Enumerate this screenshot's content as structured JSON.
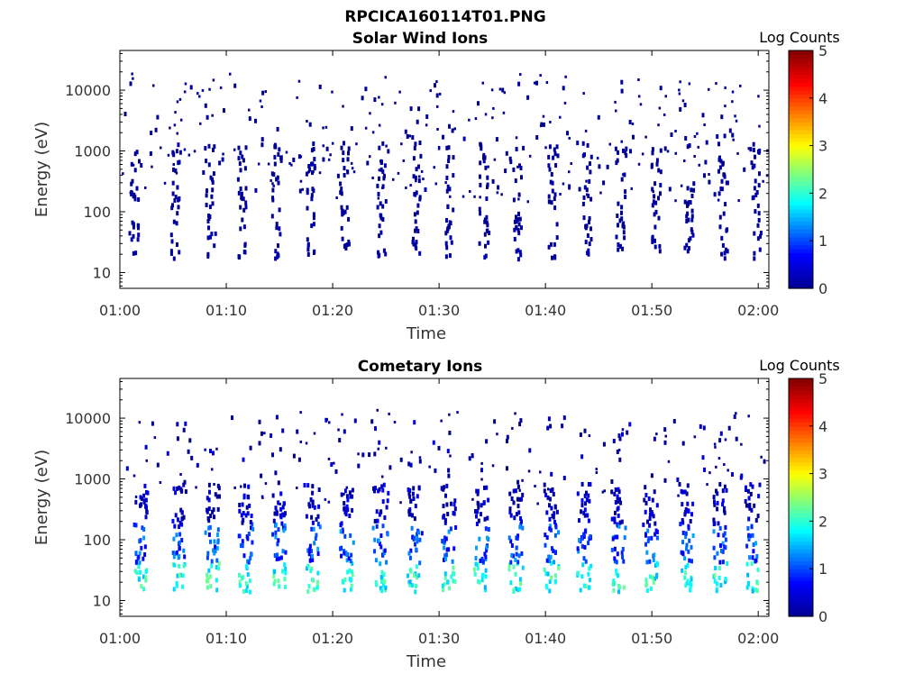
{
  "figure": {
    "title": "RPCICA160114T01.PNG"
  },
  "colors": {
    "background": "#ffffff",
    "axis": "#000000",
    "jet": [
      "#00008f",
      "#0000ff",
      "#00ffff",
      "#ffff00",
      "#ff0000",
      "#800000"
    ]
  },
  "chart_data": [
    {
      "type": "heatmap",
      "title": "Solar Wind Ions",
      "xlabel": "Time",
      "ylabel": "Energy (eV)",
      "x_ticks": [
        "01:00",
        "01:10",
        "01:20",
        "01:30",
        "01:40",
        "01:50",
        "02:00"
      ],
      "x_range_minutes": [
        0,
        61
      ],
      "y_scale": "log",
      "y_ticks": [
        10,
        100,
        1000,
        10000
      ],
      "y_tick_labels": [
        "10",
        "100",
        "1000",
        "10000"
      ],
      "y_range": [
        5.5,
        45000
      ],
      "colorbar": {
        "label": "Log Counts",
        "range": [
          0,
          5
        ],
        "ticks": [
          "0",
          "1",
          "2",
          "3",
          "4",
          "5"
        ]
      },
      "grid": false,
      "sweep_minutes": [
        1.3,
        5.1,
        8.4,
        11.4,
        14.6,
        17.8,
        21.0,
        24.5,
        27.8,
        30.8,
        34.1,
        37.3,
        40.6,
        43.8,
        47.0,
        50.3,
        53.4,
        56.6,
        59.7
      ],
      "bands": [
        {
          "e_min": 18,
          "e_max": 50,
          "log_counts": 0.1,
          "note": "low-energy band"
        },
        {
          "e_min": 50,
          "e_max": 1500,
          "log_counts": 0.05,
          "note": "sparse vertical streaks"
        },
        {
          "e_min": 200,
          "e_max": 15000,
          "log_counts": 0.02,
          "note": "scattered background dots"
        }
      ]
    },
    {
      "type": "heatmap",
      "title": "Cometary Ions",
      "xlabel": "Time",
      "ylabel": "Energy (eV)",
      "x_ticks": [
        "01:00",
        "01:10",
        "01:20",
        "01:30",
        "01:40",
        "01:50",
        "02:00"
      ],
      "x_range_minutes": [
        0,
        61
      ],
      "y_scale": "log",
      "y_ticks": [
        10,
        100,
        1000,
        10000
      ],
      "y_tick_labels": [
        "10",
        "100",
        "1000",
        "10000"
      ],
      "y_range": [
        5.5,
        45000
      ],
      "colorbar": {
        "label": "Log Counts",
        "range": [
          0,
          5
        ],
        "ticks": [
          "0",
          "1",
          "2",
          "3",
          "4",
          "5"
        ]
      },
      "grid": false,
      "sweep_minutes": [
        1.9,
        5.4,
        8.6,
        11.7,
        14.9,
        18.0,
        21.2,
        24.4,
        27.6,
        30.8,
        33.9,
        37.1,
        40.4,
        43.5,
        46.7,
        49.8,
        53.1,
        56.2,
        59.3
      ],
      "bands": [
        {
          "e_min": 15,
          "e_max": 45,
          "log_counts": 1.8,
          "note": "peak intensity band"
        },
        {
          "e_min": 45,
          "e_max": 200,
          "log_counts": 0.9,
          "note": "dense sweep column"
        },
        {
          "e_min": 200,
          "e_max": 900,
          "log_counts": 0.2,
          "note": "upper sweep streaks"
        },
        {
          "e_min": 900,
          "e_max": 12000,
          "log_counts": 0.02,
          "note": "scattered high-energy dots"
        }
      ]
    }
  ]
}
